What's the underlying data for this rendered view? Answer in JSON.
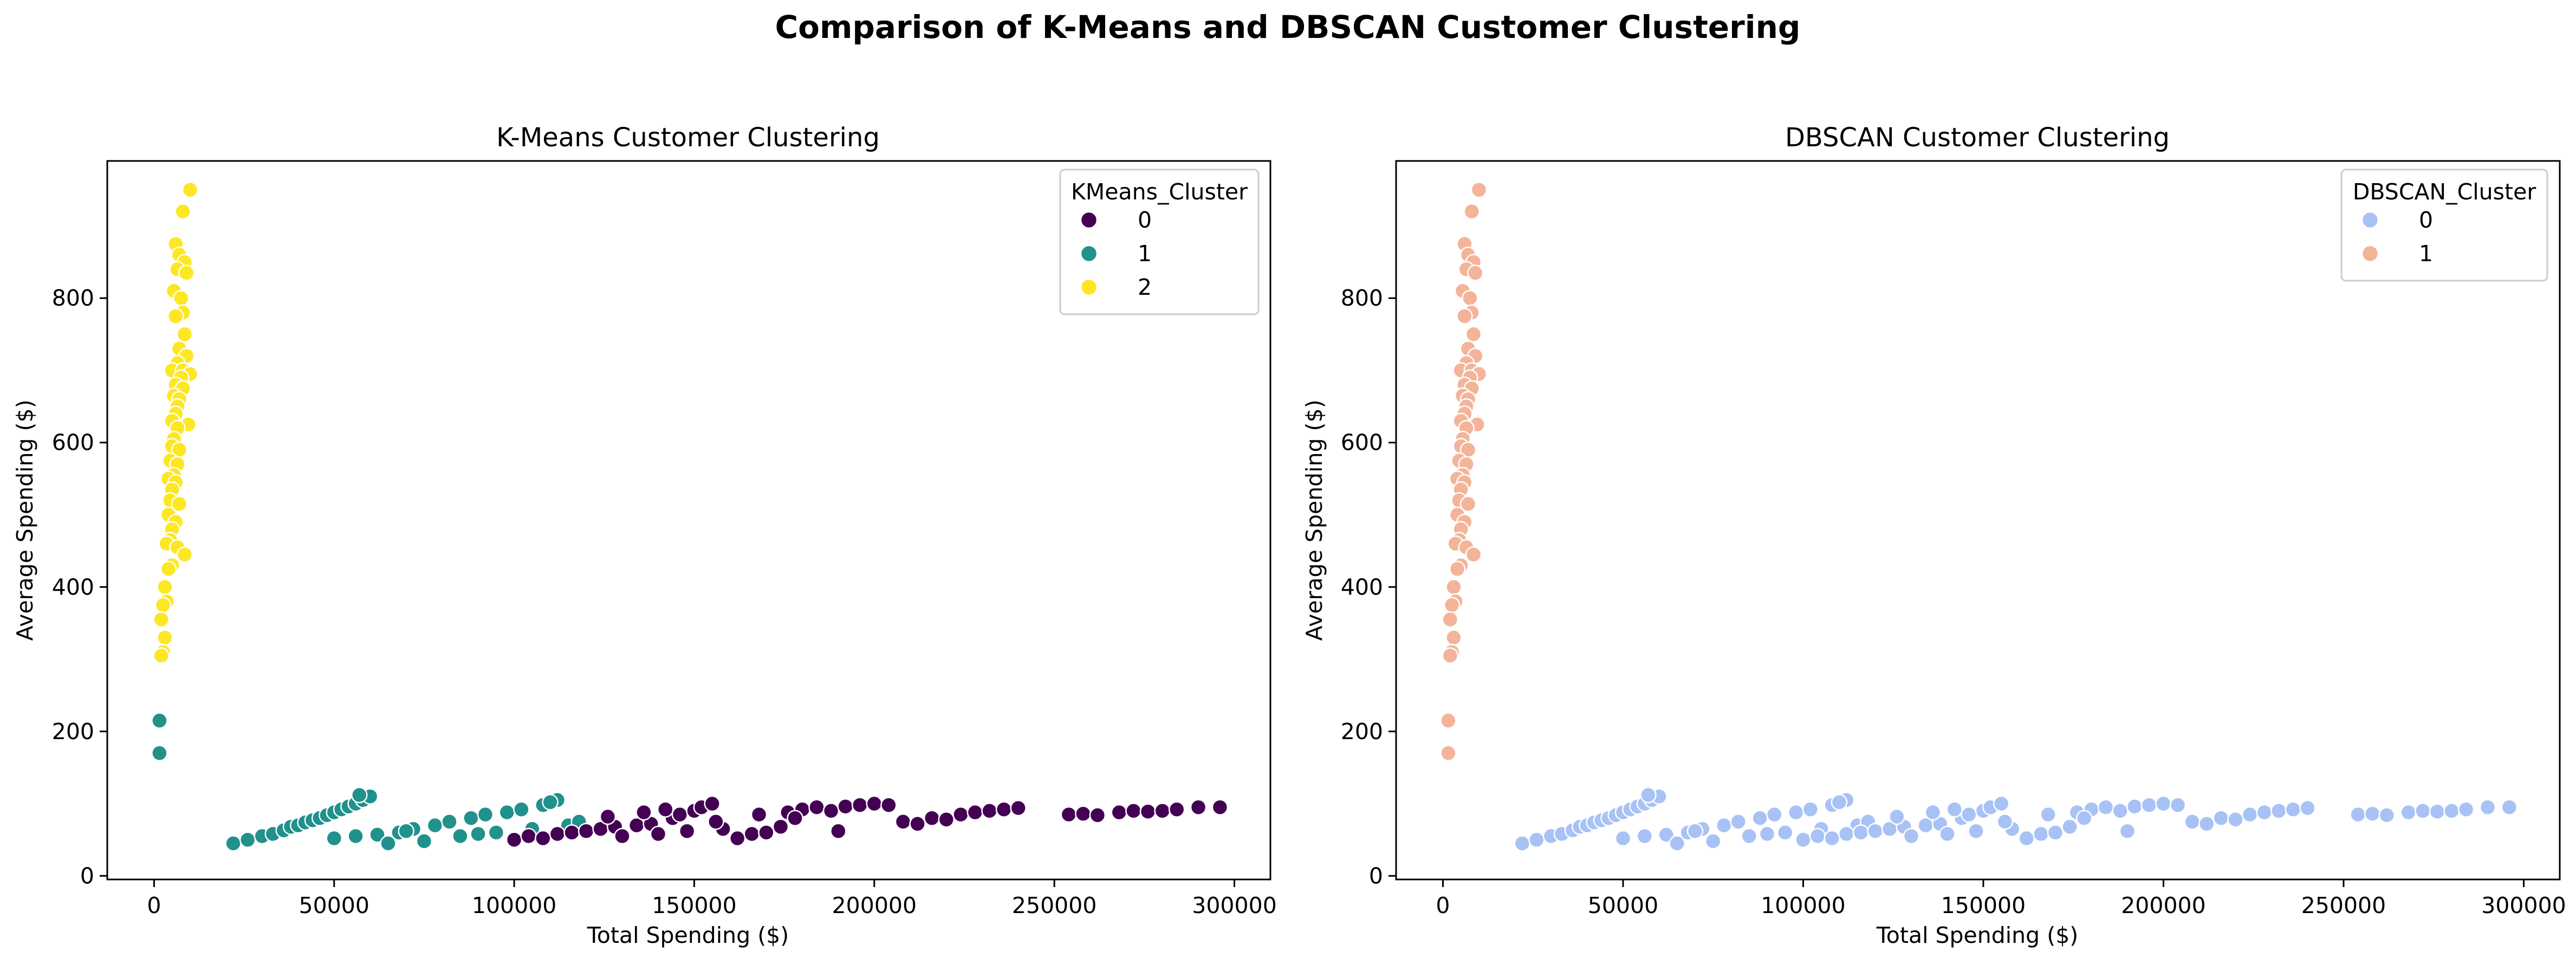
{
  "figure": {
    "title": "Comparison of K-Means and DBSCAN Customer Clustering"
  },
  "colors": {
    "kmeans": {
      "0": "#440154",
      "1": "#21918c",
      "2": "#fde725"
    },
    "dbscan": {
      "0": "#a8c2f5",
      "1": "#f4b49a"
    }
  },
  "chart_data": [
    {
      "type": "scatter",
      "title": "K-Means Customer Clustering",
      "xlabel": "Total Spending ($)",
      "ylabel": "Average Spending ($)",
      "xlim": [
        -13000,
        310000
      ],
      "ylim": [
        -5,
        990
      ],
      "xticks": [
        0,
        50000,
        100000,
        150000,
        200000,
        250000,
        300000
      ],
      "yticks": [
        0,
        200,
        400,
        600,
        800
      ],
      "grid": false,
      "legend": {
        "title": "KMeans_Cluster",
        "position": "top-right",
        "entries": [
          "0",
          "1",
          "2"
        ]
      },
      "series_source": "shared_points",
      "color_key": "kmeans"
    },
    {
      "type": "scatter",
      "title": "DBSCAN Customer Clustering",
      "xlabel": "Total Spending ($)",
      "ylabel": "Average Spending ($)",
      "xlim": [
        -13000,
        310000
      ],
      "ylim": [
        -5,
        990
      ],
      "xticks": [
        0,
        50000,
        100000,
        150000,
        200000,
        250000,
        300000
      ],
      "yticks": [
        0,
        200,
        400,
        600,
        800
      ],
      "grid": false,
      "legend": {
        "title": "DBSCAN_Cluster",
        "position": "top-right",
        "entries": [
          "0",
          "1"
        ]
      },
      "series_source": "shared_points",
      "color_key": "dbscan"
    }
  ],
  "points": [
    [
      10000,
      950,
      2,
      1
    ],
    [
      8000,
      920,
      2,
      1
    ],
    [
      6000,
      875,
      2,
      1
    ],
    [
      7000,
      860,
      2,
      1
    ],
    [
      8500,
      850,
      2,
      1
    ],
    [
      6500,
      840,
      2,
      1
    ],
    [
      9000,
      835,
      2,
      1
    ],
    [
      5500,
      810,
      2,
      1
    ],
    [
      7500,
      800,
      2,
      1
    ],
    [
      8000,
      780,
      2,
      1
    ],
    [
      6000,
      775,
      2,
      1
    ],
    [
      8500,
      750,
      2,
      1
    ],
    [
      7000,
      730,
      2,
      1
    ],
    [
      9000,
      720,
      2,
      1
    ],
    [
      6500,
      710,
      2,
      1
    ],
    [
      5000,
      700,
      2,
      1
    ],
    [
      8000,
      700,
      2,
      1
    ],
    [
      10000,
      695,
      2,
      1
    ],
    [
      7500,
      690,
      2,
      1
    ],
    [
      6000,
      680,
      2,
      1
    ],
    [
      8000,
      675,
      2,
      1
    ],
    [
      5500,
      665,
      2,
      1
    ],
    [
      7000,
      660,
      2,
      1
    ],
    [
      6500,
      650,
      2,
      1
    ],
    [
      6000,
      640,
      2,
      1
    ],
    [
      5000,
      630,
      2,
      1
    ],
    [
      9500,
      625,
      2,
      1
    ],
    [
      6500,
      620,
      2,
      1
    ],
    [
      5500,
      605,
      2,
      1
    ],
    [
      5000,
      595,
      2,
      1
    ],
    [
      7000,
      590,
      2,
      1
    ],
    [
      4500,
      575,
      2,
      1
    ],
    [
      6500,
      570,
      2,
      1
    ],
    [
      5500,
      555,
      2,
      1
    ],
    [
      4000,
      550,
      2,
      1
    ],
    [
      6000,
      545,
      2,
      1
    ],
    [
      5000,
      535,
      2,
      1
    ],
    [
      4500,
      520,
      2,
      1
    ],
    [
      7000,
      515,
      2,
      1
    ],
    [
      4000,
      500,
      2,
      1
    ],
    [
      6000,
      490,
      2,
      1
    ],
    [
      5000,
      480,
      2,
      1
    ],
    [
      4500,
      465,
      2,
      1
    ],
    [
      3500,
      460,
      2,
      1
    ],
    [
      6500,
      455,
      2,
      1
    ],
    [
      8500,
      445,
      2,
      1
    ],
    [
      5000,
      430,
      2,
      1
    ],
    [
      4000,
      425,
      2,
      1
    ],
    [
      3000,
      400,
      2,
      1
    ],
    [
      3500,
      380,
      2,
      1
    ],
    [
      2500,
      375,
      2,
      1
    ],
    [
      2000,
      355,
      2,
      1
    ],
    [
      3000,
      330,
      2,
      1
    ],
    [
      2500,
      310,
      2,
      1
    ],
    [
      2000,
      305,
      2,
      1
    ],
    [
      1500,
      215,
      1,
      1
    ],
    [
      1500,
      170,
      1,
      1
    ],
    [
      22000,
      45,
      1,
      0
    ],
    [
      26000,
      50,
      1,
      0
    ],
    [
      30000,
      55,
      1,
      0
    ],
    [
      33000,
      58,
      1,
      0
    ],
    [
      36000,
      63,
      1,
      0
    ],
    [
      38000,
      68,
      1,
      0
    ],
    [
      40000,
      70,
      1,
      0
    ],
    [
      42000,
      74,
      1,
      0
    ],
    [
      44000,
      77,
      1,
      0
    ],
    [
      46000,
      80,
      1,
      0
    ],
    [
      48000,
      84,
      1,
      0
    ],
    [
      50000,
      88,
      1,
      0
    ],
    [
      52000,
      92,
      1,
      0
    ],
    [
      54000,
      96,
      1,
      0
    ],
    [
      56000,
      100,
      1,
      0
    ],
    [
      58000,
      105,
      1,
      0
    ],
    [
      60000,
      110,
      1,
      0
    ],
    [
      57000,
      112,
      1,
      0
    ],
    [
      50000,
      52,
      1,
      0
    ],
    [
      56000,
      55,
      1,
      0
    ],
    [
      62000,
      57,
      1,
      0
    ],
    [
      65000,
      45,
      1,
      0
    ],
    [
      68000,
      60,
      1,
      0
    ],
    [
      72000,
      65,
      1,
      0
    ],
    [
      75000,
      48,
      1,
      0
    ],
    [
      78000,
      70,
      1,
      0
    ],
    [
      82000,
      75,
      1,
      0
    ],
    [
      85000,
      55,
      1,
      0
    ],
    [
      88000,
      80,
      1,
      0
    ],
    [
      92000,
      85,
      1,
      0
    ],
    [
      95000,
      60,
      1,
      0
    ],
    [
      98000,
      88,
      1,
      0
    ],
    [
      102000,
      92,
      1,
      0
    ],
    [
      105000,
      65,
      1,
      0
    ],
    [
      108000,
      98,
      1,
      0
    ],
    [
      112000,
      105,
      1,
      0
    ],
    [
      115000,
      70,
      1,
      0
    ],
    [
      118000,
      75,
      1,
      0
    ],
    [
      110000,
      102,
      1,
      0
    ],
    [
      90000,
      58,
      1,
      0
    ],
    [
      70000,
      62,
      1,
      0
    ],
    [
      100000,
      50,
      0,
      0
    ],
    [
      104000,
      55,
      0,
      0
    ],
    [
      108000,
      52,
      0,
      0
    ],
    [
      112000,
      58,
      0,
      0
    ],
    [
      116000,
      60,
      0,
      0
    ],
    [
      120000,
      62,
      0,
      0
    ],
    [
      124000,
      65,
      0,
      0
    ],
    [
      128000,
      68,
      0,
      0
    ],
    [
      130000,
      55,
      0,
      0
    ],
    [
      134000,
      70,
      0,
      0
    ],
    [
      138000,
      72,
      0,
      0
    ],
    [
      140000,
      58,
      0,
      0
    ],
    [
      144000,
      80,
      0,
      0
    ],
    [
      146000,
      85,
      0,
      0
    ],
    [
      150000,
      90,
      0,
      0
    ],
    [
      152000,
      95,
      0,
      0
    ],
    [
      155000,
      100,
      0,
      0
    ],
    [
      148000,
      62,
      0,
      0
    ],
    [
      158000,
      65,
      0,
      0
    ],
    [
      162000,
      52,
      0,
      0
    ],
    [
      166000,
      58,
      0,
      0
    ],
    [
      170000,
      60,
      0,
      0
    ],
    [
      174000,
      68,
      0,
      0
    ],
    [
      176000,
      88,
      0,
      0
    ],
    [
      180000,
      92,
      0,
      0
    ],
    [
      184000,
      95,
      0,
      0
    ],
    [
      188000,
      90,
      0,
      0
    ],
    [
      192000,
      96,
      0,
      0
    ],
    [
      196000,
      98,
      0,
      0
    ],
    [
      200000,
      100,
      0,
      0
    ],
    [
      190000,
      62,
      0,
      0
    ],
    [
      204000,
      98,
      0,
      0
    ],
    [
      126000,
      82,
      0,
      0
    ],
    [
      136000,
      88,
      0,
      0
    ],
    [
      142000,
      92,
      0,
      0
    ],
    [
      156000,
      75,
      0,
      0
    ],
    [
      168000,
      85,
      0,
      0
    ],
    [
      178000,
      80,
      0,
      0
    ],
    [
      208000,
      75,
      0,
      0
    ],
    [
      212000,
      72,
      0,
      0
    ],
    [
      216000,
      80,
      0,
      0
    ],
    [
      220000,
      78,
      0,
      0
    ],
    [
      224000,
      85,
      0,
      0
    ],
    [
      228000,
      88,
      0,
      0
    ],
    [
      232000,
      90,
      0,
      0
    ],
    [
      236000,
      92,
      0,
      0
    ],
    [
      240000,
      94,
      0,
      0
    ],
    [
      254000,
      85,
      0,
      0
    ],
    [
      258000,
      86,
      0,
      0
    ],
    [
      262000,
      84,
      0,
      0
    ],
    [
      268000,
      88,
      0,
      0
    ],
    [
      272000,
      90,
      0,
      0
    ],
    [
      276000,
      89,
      0,
      0
    ],
    [
      280000,
      90,
      0,
      0
    ],
    [
      284000,
      92,
      0,
      0
    ],
    [
      290000,
      95,
      0,
      0
    ],
    [
      296000,
      95,
      0,
      0
    ]
  ]
}
